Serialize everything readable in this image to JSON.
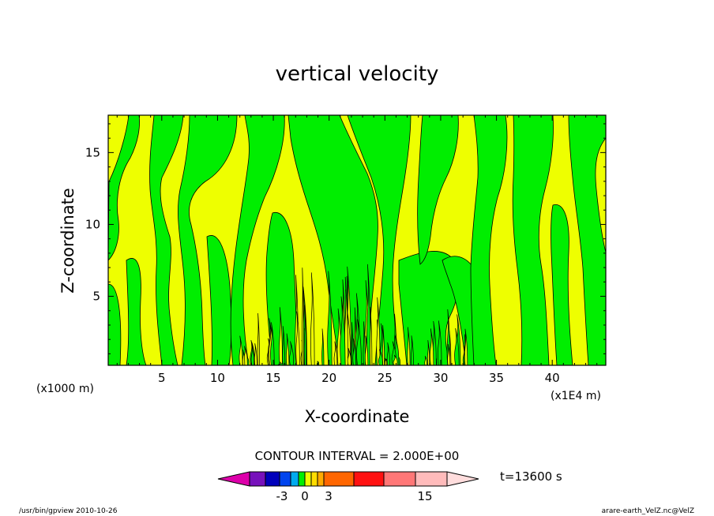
{
  "chart_data": {
    "type": "heatmap",
    "title": "vertical velocity",
    "xlabel": "X-coordinate",
    "ylabel": "Z-coordinate",
    "x_unit_left": "(x1000 m)",
    "x_unit_right": "(x1E4 m)",
    "xlim": [
      0.2,
      44.8
    ],
    "ylim": [
      0.2,
      17.6
    ],
    "x_ticks": [
      5,
      10,
      15,
      20,
      25,
      30,
      35,
      40
    ],
    "y_ticks": [
      5,
      10,
      15
    ],
    "x_tick_labels": [
      "5",
      "10",
      "15",
      "20",
      "25",
      "30",
      "35",
      "40"
    ],
    "y_tick_labels": [
      "5",
      "10",
      "15"
    ],
    "contour_interval_text": "CONTOUR INTERVAL = 2.000E+00",
    "contour_interval": 2.0,
    "field_levels": [
      {
        "name": "negative (-2 to 0)",
        "color": "#00ee00"
      },
      {
        "name": "positive (0 to 2)",
        "color": "#eeff00"
      }
    ],
    "colorbar": {
      "colors": [
        "#dd00aa",
        "#7711bb",
        "#0000bb",
        "#0044ee",
        "#00aaee",
        "#00ee00",
        "#eeff00",
        "#ffdd00",
        "#ffaa00",
        "#ff6600",
        "#ff1111",
        "#ff7777",
        "#ffbbbb",
        "#ffdddd"
      ],
      "tick_labels": [
        "-3",
        "0",
        "3",
        "15"
      ],
      "time_label": "t=13600 s"
    }
  },
  "footer": {
    "left": "/usr/bin/gpview   2010-10-26",
    "right": "arare-earth_VelZ.nc@VelZ"
  }
}
